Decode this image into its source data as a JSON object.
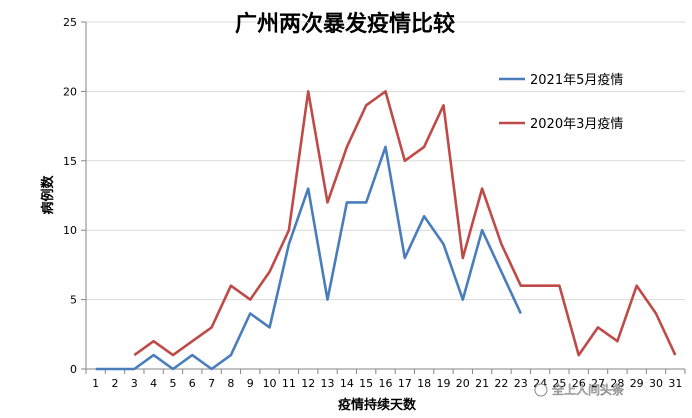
{
  "chart_data": {
    "type": "line",
    "title": "广州两次暴发疫情比较",
    "xlabel": "疫情持续天数",
    "ylabel": "病例数",
    "x": [
      1,
      2,
      3,
      4,
      5,
      6,
      7,
      8,
      9,
      10,
      11,
      12,
      13,
      14,
      15,
      16,
      17,
      18,
      19,
      20,
      21,
      22,
      23,
      24,
      25,
      26,
      27,
      28,
      29,
      30,
      31
    ],
    "xtick_labels": [
      "1",
      "2",
      "3",
      "4",
      "5",
      "6",
      "7",
      "8",
      "9",
      "10",
      "11",
      "12",
      "13",
      "14",
      "15",
      "16",
      "17",
      "18",
      "19",
      "20",
      "21",
      "22",
      "23",
      "24",
      "25",
      "26",
      "27",
      "28",
      "29",
      "30",
      "31"
    ],
    "ylim": [
      0,
      25
    ],
    "yticks": [
      0,
      5,
      10,
      15,
      20,
      25
    ],
    "grid": true,
    "legend_position": "upper-right",
    "series": [
      {
        "name": "2021年5月疫情",
        "color": "#4a7ebb",
        "values": [
          0,
          0,
          0,
          1,
          0,
          1,
          0,
          1,
          4,
          3,
          9,
          13,
          5,
          12,
          12,
          16,
          8,
          11,
          9,
          5,
          10,
          7,
          4,
          null,
          null,
          null,
          null,
          null,
          null,
          null,
          null
        ]
      },
      {
        "name": "2020年3月疫情",
        "color": "#be4b48",
        "values": [
          null,
          null,
          1,
          2,
          1,
          2,
          3,
          6,
          5,
          7,
          10,
          20,
          12,
          16,
          19,
          20,
          15,
          16,
          19,
          8,
          13,
          9,
          6,
          6,
          6,
          1,
          3,
          2,
          6,
          4,
          1
        ]
      }
    ]
  },
  "watermark": "全上人间头条"
}
